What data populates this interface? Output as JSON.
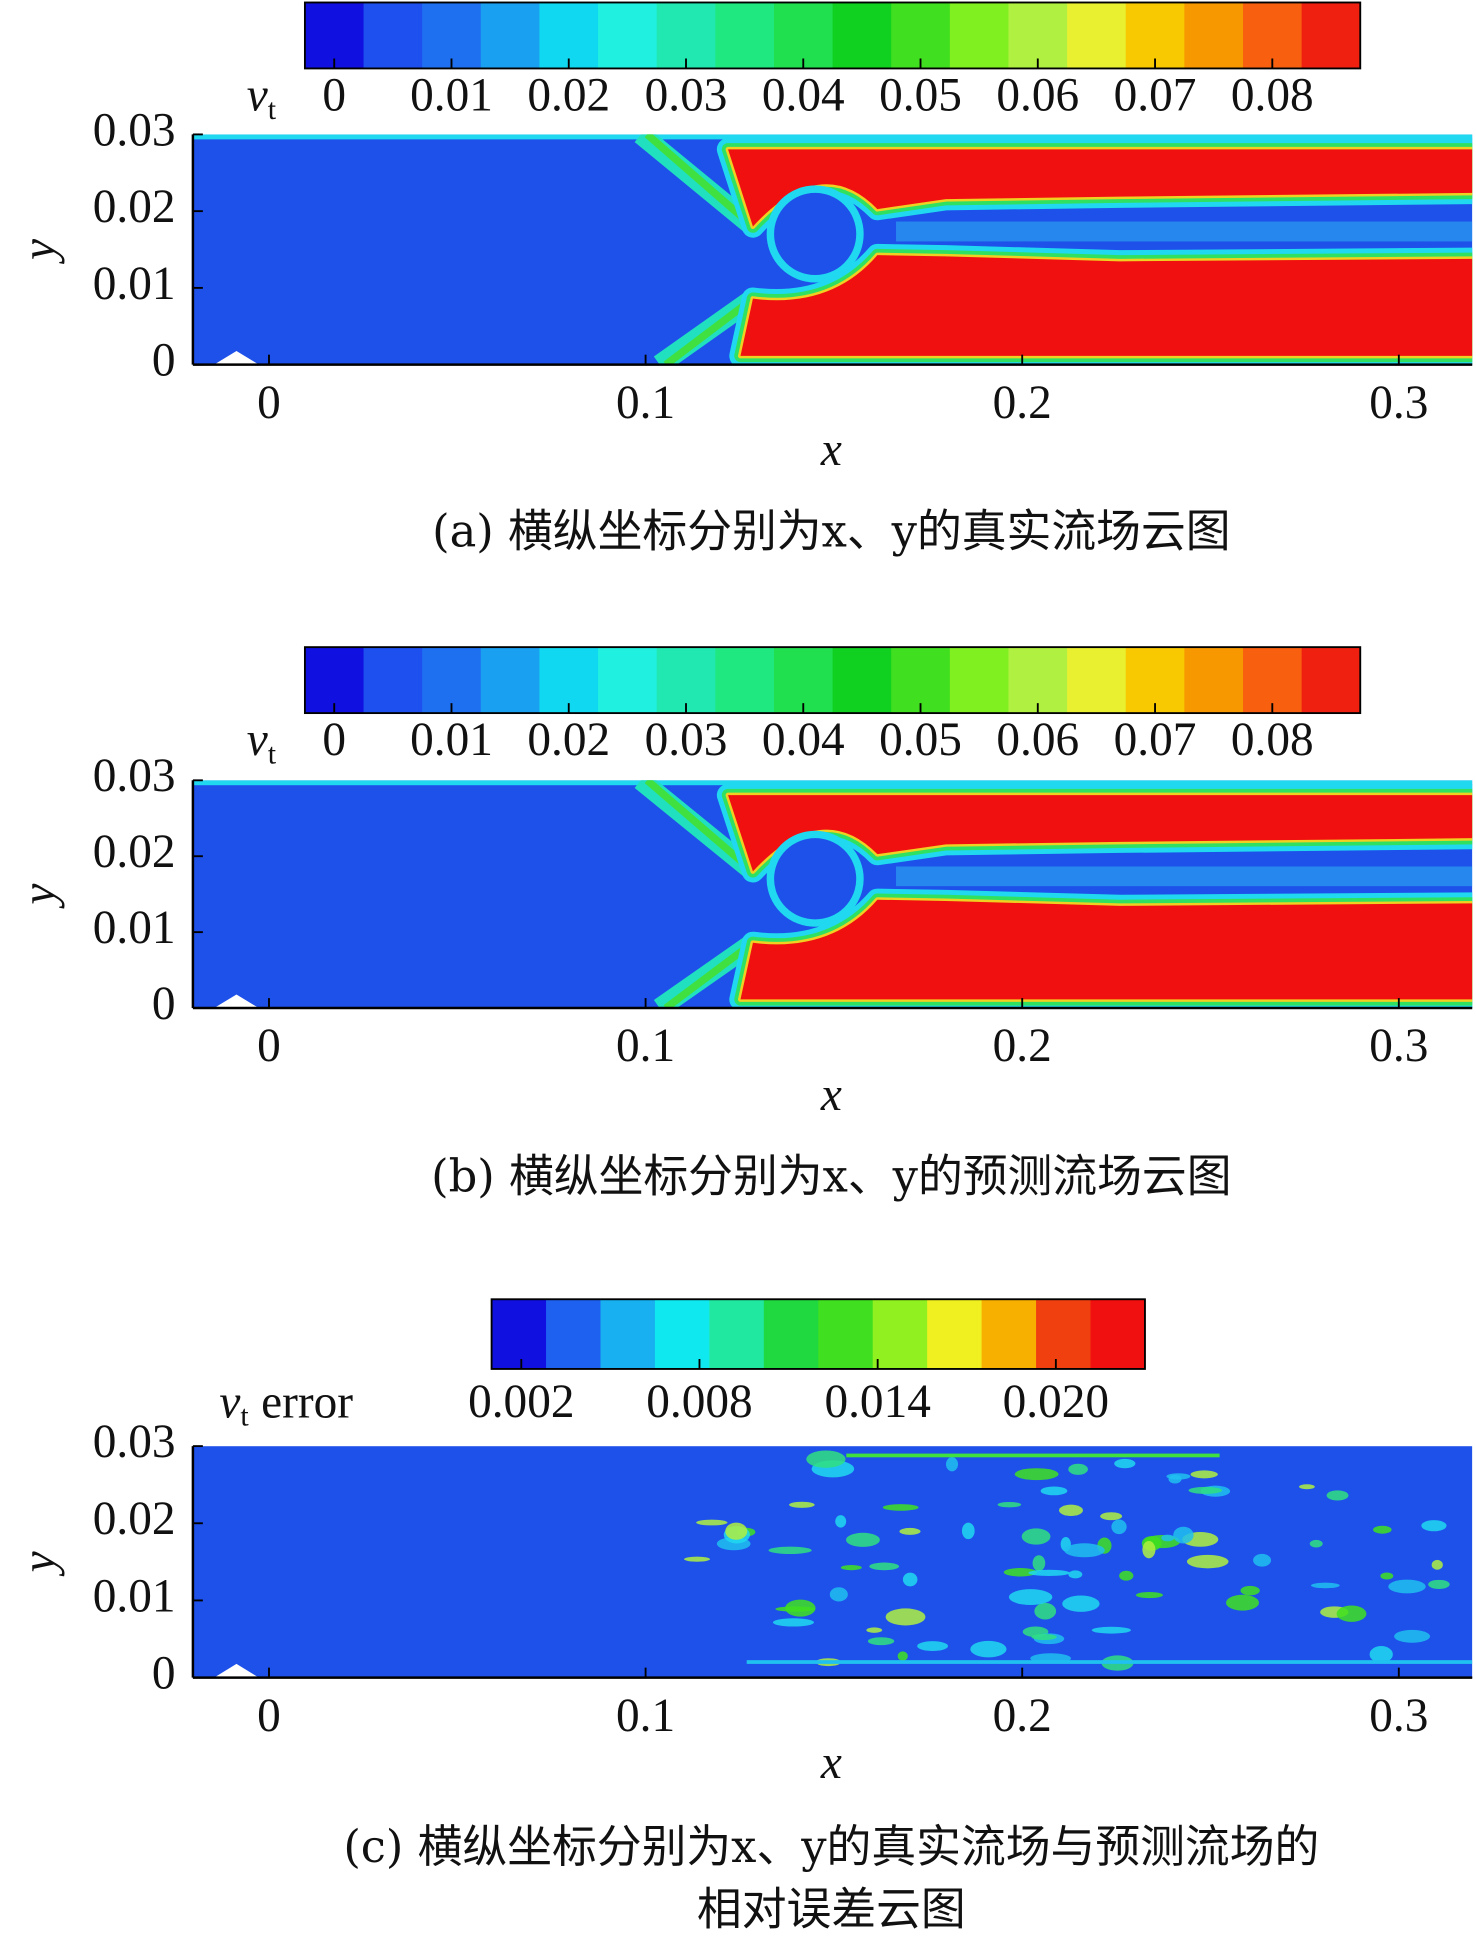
{
  "chart_data": [
    {
      "type": "contour",
      "colorbar": {
        "label_symbol": "v",
        "label_subscript": "t",
        "clim": [
          -0.0025,
          0.0875
        ],
        "ticks": [
          0,
          0.01,
          0.02,
          0.03,
          0.04,
          0.05,
          0.06,
          0.07,
          0.08
        ],
        "colors": [
          "#1010e0",
          "#1e50f0",
          "#1e70f0",
          "#1aa0f0",
          "#10d8f0",
          "#20f0e0",
          "#20e8b0",
          "#20e880",
          "#20e050",
          "#10d020",
          "#40e020",
          "#80f020",
          "#b0f040",
          "#e8f030",
          "#f8c800",
          "#f89800",
          "#f86010",
          "#f02010"
        ]
      },
      "xlim": [
        -0.0202,
        0.3195
      ],
      "ylim": [
        0,
        0.03
      ],
      "xticks": [
        0,
        0.1,
        0.2,
        0.3
      ],
      "yticks": [
        0,
        0.01,
        0.02,
        0.03
      ],
      "xlabel": "x",
      "ylabel": "y",
      "caption": [
        "(a) 横纵坐标分别为x、y的真实流场云图"
      ]
    },
    {
      "type": "contour",
      "colorbar": {
        "label_symbol": "v",
        "label_subscript": "t",
        "clim": [
          -0.0025,
          0.0875
        ],
        "ticks": [
          0,
          0.01,
          0.02,
          0.03,
          0.04,
          0.05,
          0.06,
          0.07,
          0.08
        ],
        "colors": [
          "#1010e0",
          "#1e50f0",
          "#1e70f0",
          "#1aa0f0",
          "#10d8f0",
          "#20f0e0",
          "#20e8b0",
          "#20e880",
          "#20e050",
          "#10d020",
          "#40e020",
          "#80f020",
          "#b0f040",
          "#e8f030",
          "#f8c800",
          "#f89800",
          "#f86010",
          "#f02010"
        ]
      },
      "xlim": [
        -0.0202,
        0.3195
      ],
      "ylim": [
        0,
        0.03
      ],
      "xticks": [
        0,
        0.1,
        0.2,
        0.3
      ],
      "yticks": [
        0,
        0.01,
        0.02,
        0.03
      ],
      "xlabel": "x",
      "ylabel": "y",
      "caption": [
        "(b) 横纵坐标分别为x、y的预测流场云图"
      ]
    },
    {
      "type": "contour",
      "colorbar": {
        "label_symbol": "v",
        "label_subscript": "t",
        "label_text": "error",
        "clim": [
          0.001,
          0.023
        ],
        "ticks": [
          0.002,
          0.008,
          0.014,
          {
            "value": 0.02,
            "label": "0.020"
          }
        ],
        "colors": [
          "#1010e0",
          "#1e60f0",
          "#18b0f0",
          "#10e8f0",
          "#20e8a0",
          "#20d840",
          "#40e020",
          "#90f020",
          "#f0f020",
          "#f8b000",
          "#f04010",
          "#f01010"
        ]
      },
      "xlim": [
        -0.0202,
        0.3195
      ],
      "ylim": [
        0,
        0.03
      ],
      "xticks": [
        0,
        0.1,
        0.2,
        0.3
      ],
      "yticks": [
        0,
        0.01,
        0.02,
        0.03
      ],
      "xlabel": "x",
      "ylabel": "y",
      "caption": [
        "(c) 横纵坐标分别为x、y的真实流场与预测流场的",
        "相对误差云图"
      ]
    }
  ]
}
